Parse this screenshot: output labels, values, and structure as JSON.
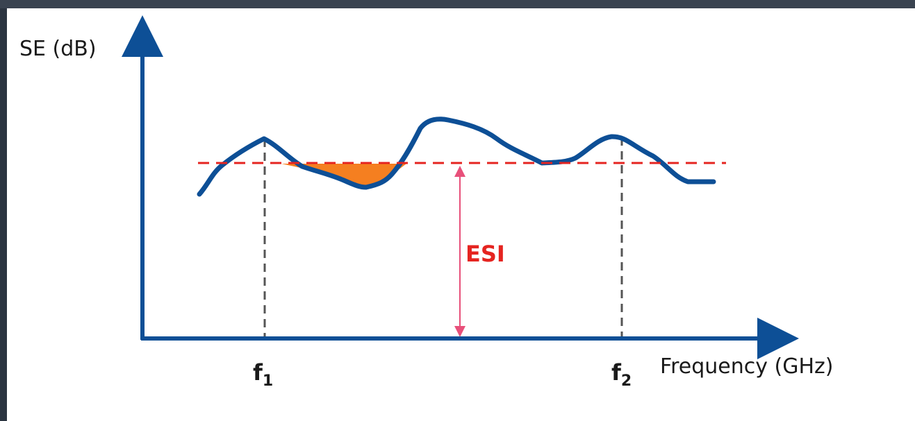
{
  "y_axis_label": "SE (dB)",
  "x_axis_label": "Frequency (GHz)",
  "markers": [
    {
      "label": "f",
      "subscript": "1"
    },
    {
      "label": "f",
      "subscript": "2"
    }
  ],
  "threshold_label": "ESI"
}
